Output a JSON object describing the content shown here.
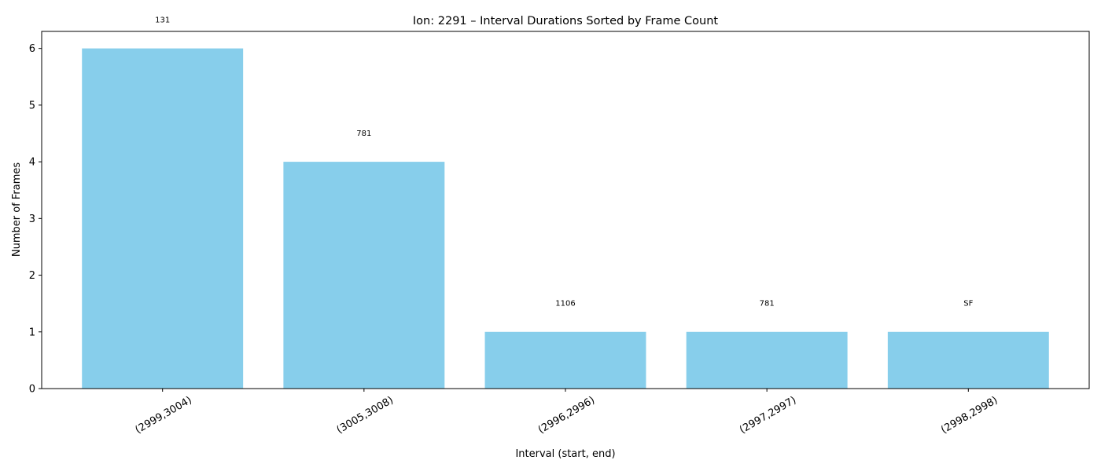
{
  "chart_data": {
    "type": "bar",
    "title": "Ion: 2291 – Interval Durations Sorted by Frame Count",
    "xlabel": "Interval (start, end)",
    "ylabel": "Number of Frames",
    "categories": [
      "(2999,3004)",
      "(3005,3008)",
      "(2996,2996)",
      "(2997,2997)",
      "(2998,2998)"
    ],
    "values": [
      6,
      4,
      1,
      1,
      1
    ],
    "annotations": [
      "131",
      "781",
      "1106",
      "781",
      "SF"
    ],
    "yticks": [
      "0",
      "1",
      "2",
      "3",
      "4",
      "5",
      "6"
    ],
    "ylim": [
      0,
      6.3
    ],
    "grid": false,
    "legend": "none",
    "bar_color": "#87ceeb"
  }
}
